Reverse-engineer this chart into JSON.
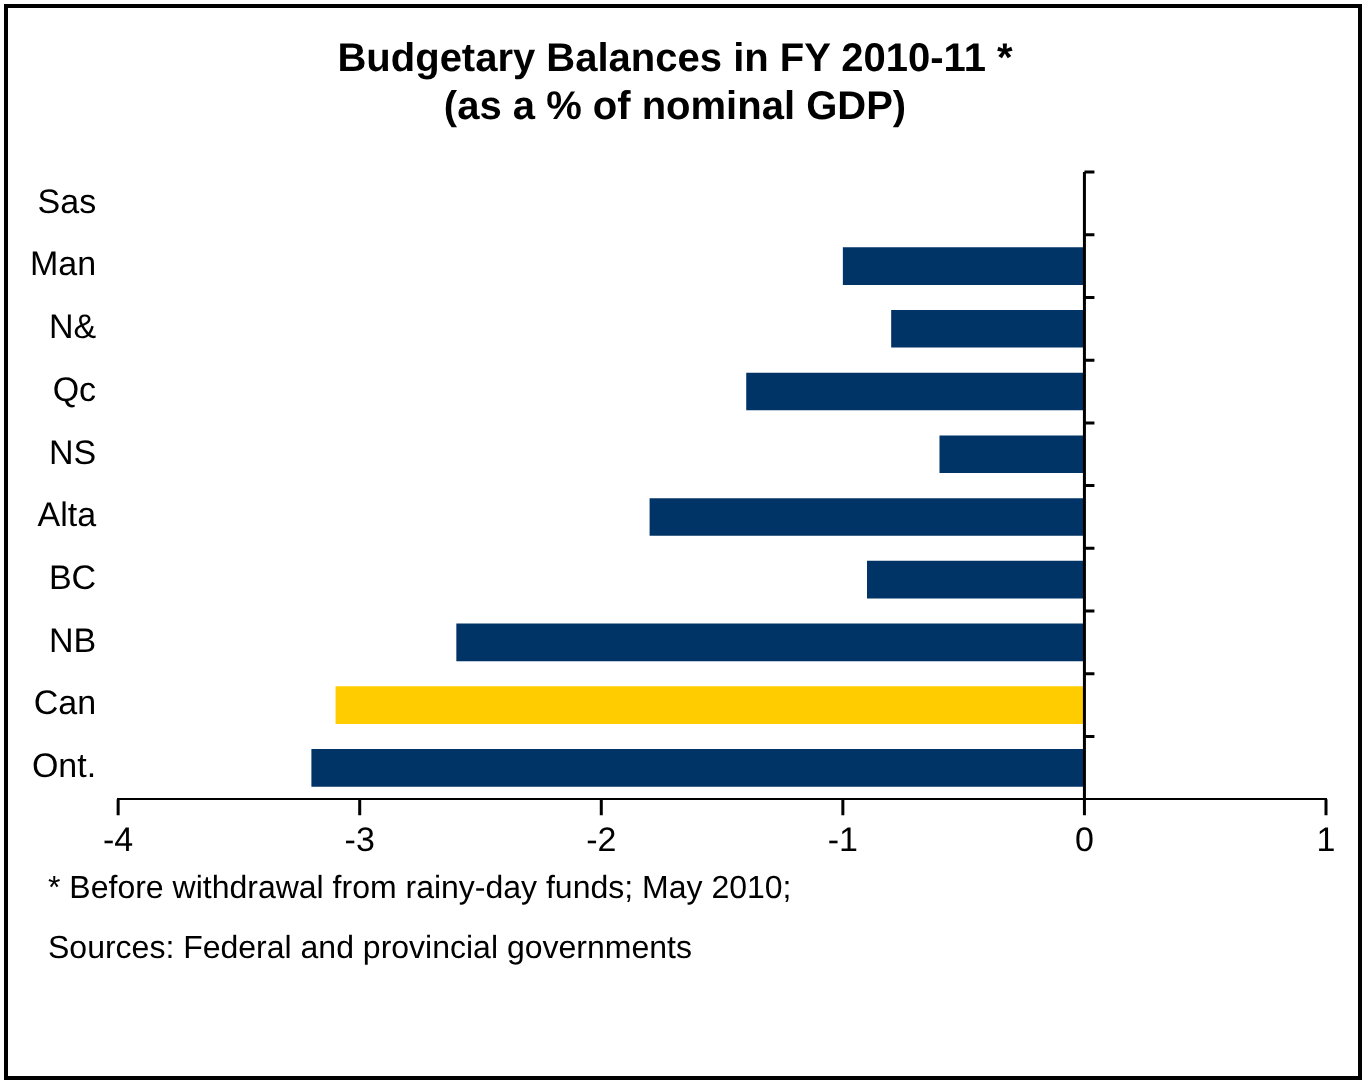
{
  "chart_data": {
    "type": "bar",
    "orientation": "horizontal",
    "title": "Budgetary Balances in FY 2010-11 *",
    "subtitle": "(as a % of nominal GDP)",
    "categories": [
      "Sas",
      "Man",
      "N&",
      "Qc",
      "NS",
      "Alta",
      "BC",
      "NB",
      "Can",
      "Ont."
    ],
    "values": [
      0,
      -1.0,
      -0.8,
      -1.4,
      -0.6,
      -1.8,
      -0.9,
      -2.6,
      -3.1,
      -3.2
    ],
    "colors": [
      "#003366",
      "#003366",
      "#003366",
      "#003366",
      "#003366",
      "#003366",
      "#003366",
      "#003366",
      "#ffcc00",
      "#003366"
    ],
    "xlim": [
      -4,
      1
    ],
    "xticks": [
      -4,
      -3,
      -2,
      -1,
      0,
      1
    ],
    "legend": false,
    "annotations": [
      "* Before withdrawal from rainy-day funds; May 2010;",
      "Sources: Federal and provincial governments"
    ]
  }
}
